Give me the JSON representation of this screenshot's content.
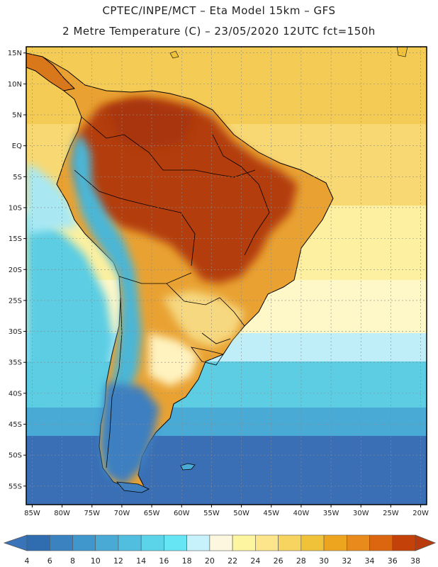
{
  "header": {
    "line1": "CPTEC/INPE/MCT –  Eta Model 15km – GFS",
    "line2": "2 Metre Temperature (C) – 23/05/2020 12UTC fct=150h"
  },
  "map": {
    "lon_range": [
      -86,
      -19
    ],
    "lat_range": [
      -58,
      16
    ],
    "lat_ticks": [
      {
        "value": 15,
        "label": "15N"
      },
      {
        "value": 10,
        "label": "10N"
      },
      {
        "value": 5,
        "label": "5N"
      },
      {
        "value": 0,
        "label": "EQ"
      },
      {
        "value": -5,
        "label": "5S"
      },
      {
        "value": -10,
        "label": "10S"
      },
      {
        "value": -15,
        "label": "15S"
      },
      {
        "value": -20,
        "label": "20S"
      },
      {
        "value": -25,
        "label": "25S"
      },
      {
        "value": -30,
        "label": "30S"
      },
      {
        "value": -35,
        "label": "35S"
      },
      {
        "value": -40,
        "label": "40S"
      },
      {
        "value": -45,
        "label": "45S"
      },
      {
        "value": -50,
        "label": "50S"
      },
      {
        "value": -55,
        "label": "55S"
      }
    ],
    "lon_ticks": [
      {
        "value": -85,
        "label": "85W"
      },
      {
        "value": -80,
        "label": "80W"
      },
      {
        "value": -75,
        "label": "75W"
      },
      {
        "value": -70,
        "label": "70W"
      },
      {
        "value": -65,
        "label": "65W"
      },
      {
        "value": -60,
        "label": "60W"
      },
      {
        "value": -55,
        "label": "55W"
      },
      {
        "value": -50,
        "label": "50W"
      },
      {
        "value": -45,
        "label": "45W"
      },
      {
        "value": -40,
        "label": "40W"
      },
      {
        "value": -35,
        "label": "35W"
      },
      {
        "value": -30,
        "label": "30W"
      },
      {
        "value": -25,
        "label": "25W"
      },
      {
        "value": -20,
        "label": "20W"
      }
    ],
    "colors": {
      "ocean_south": "#3a6fb5",
      "ocean_cold": "#4b8ecb",
      "ocean_cool": "#5bc0de",
      "ocean_mild": "#a9e8f3",
      "ocean_warm": "#fdf0a0",
      "ocean_tropical": "#f4cc55",
      "land_hot": "#b23c0c",
      "land_warm": "#d9771b",
      "land_mild": "#eeaa33",
      "andes": "#4cb6d6",
      "patagonia": "#3d7fc0",
      "border": "#000000",
      "grid": "#9a9a9a"
    }
  },
  "colorbar": {
    "labels": [
      "4",
      "6",
      "8",
      "10",
      "12",
      "14",
      "16",
      "18",
      "20",
      "22",
      "24",
      "26",
      "28",
      "30",
      "32",
      "34",
      "36",
      "38"
    ],
    "colors": [
      "#2f6db0",
      "#3a82c0",
      "#3f97cc",
      "#4aaad6",
      "#52bedf",
      "#5bd3e8",
      "#66e6f5",
      "#c8f2fb",
      "#fdf7df",
      "#fef5a0",
      "#fce58a",
      "#f7d460",
      "#f0c23a",
      "#eda51f",
      "#e88a1c",
      "#dc6610",
      "#c4420a"
    ],
    "under_color": "#3a74b8",
    "over_color": "#b83a0d"
  }
}
